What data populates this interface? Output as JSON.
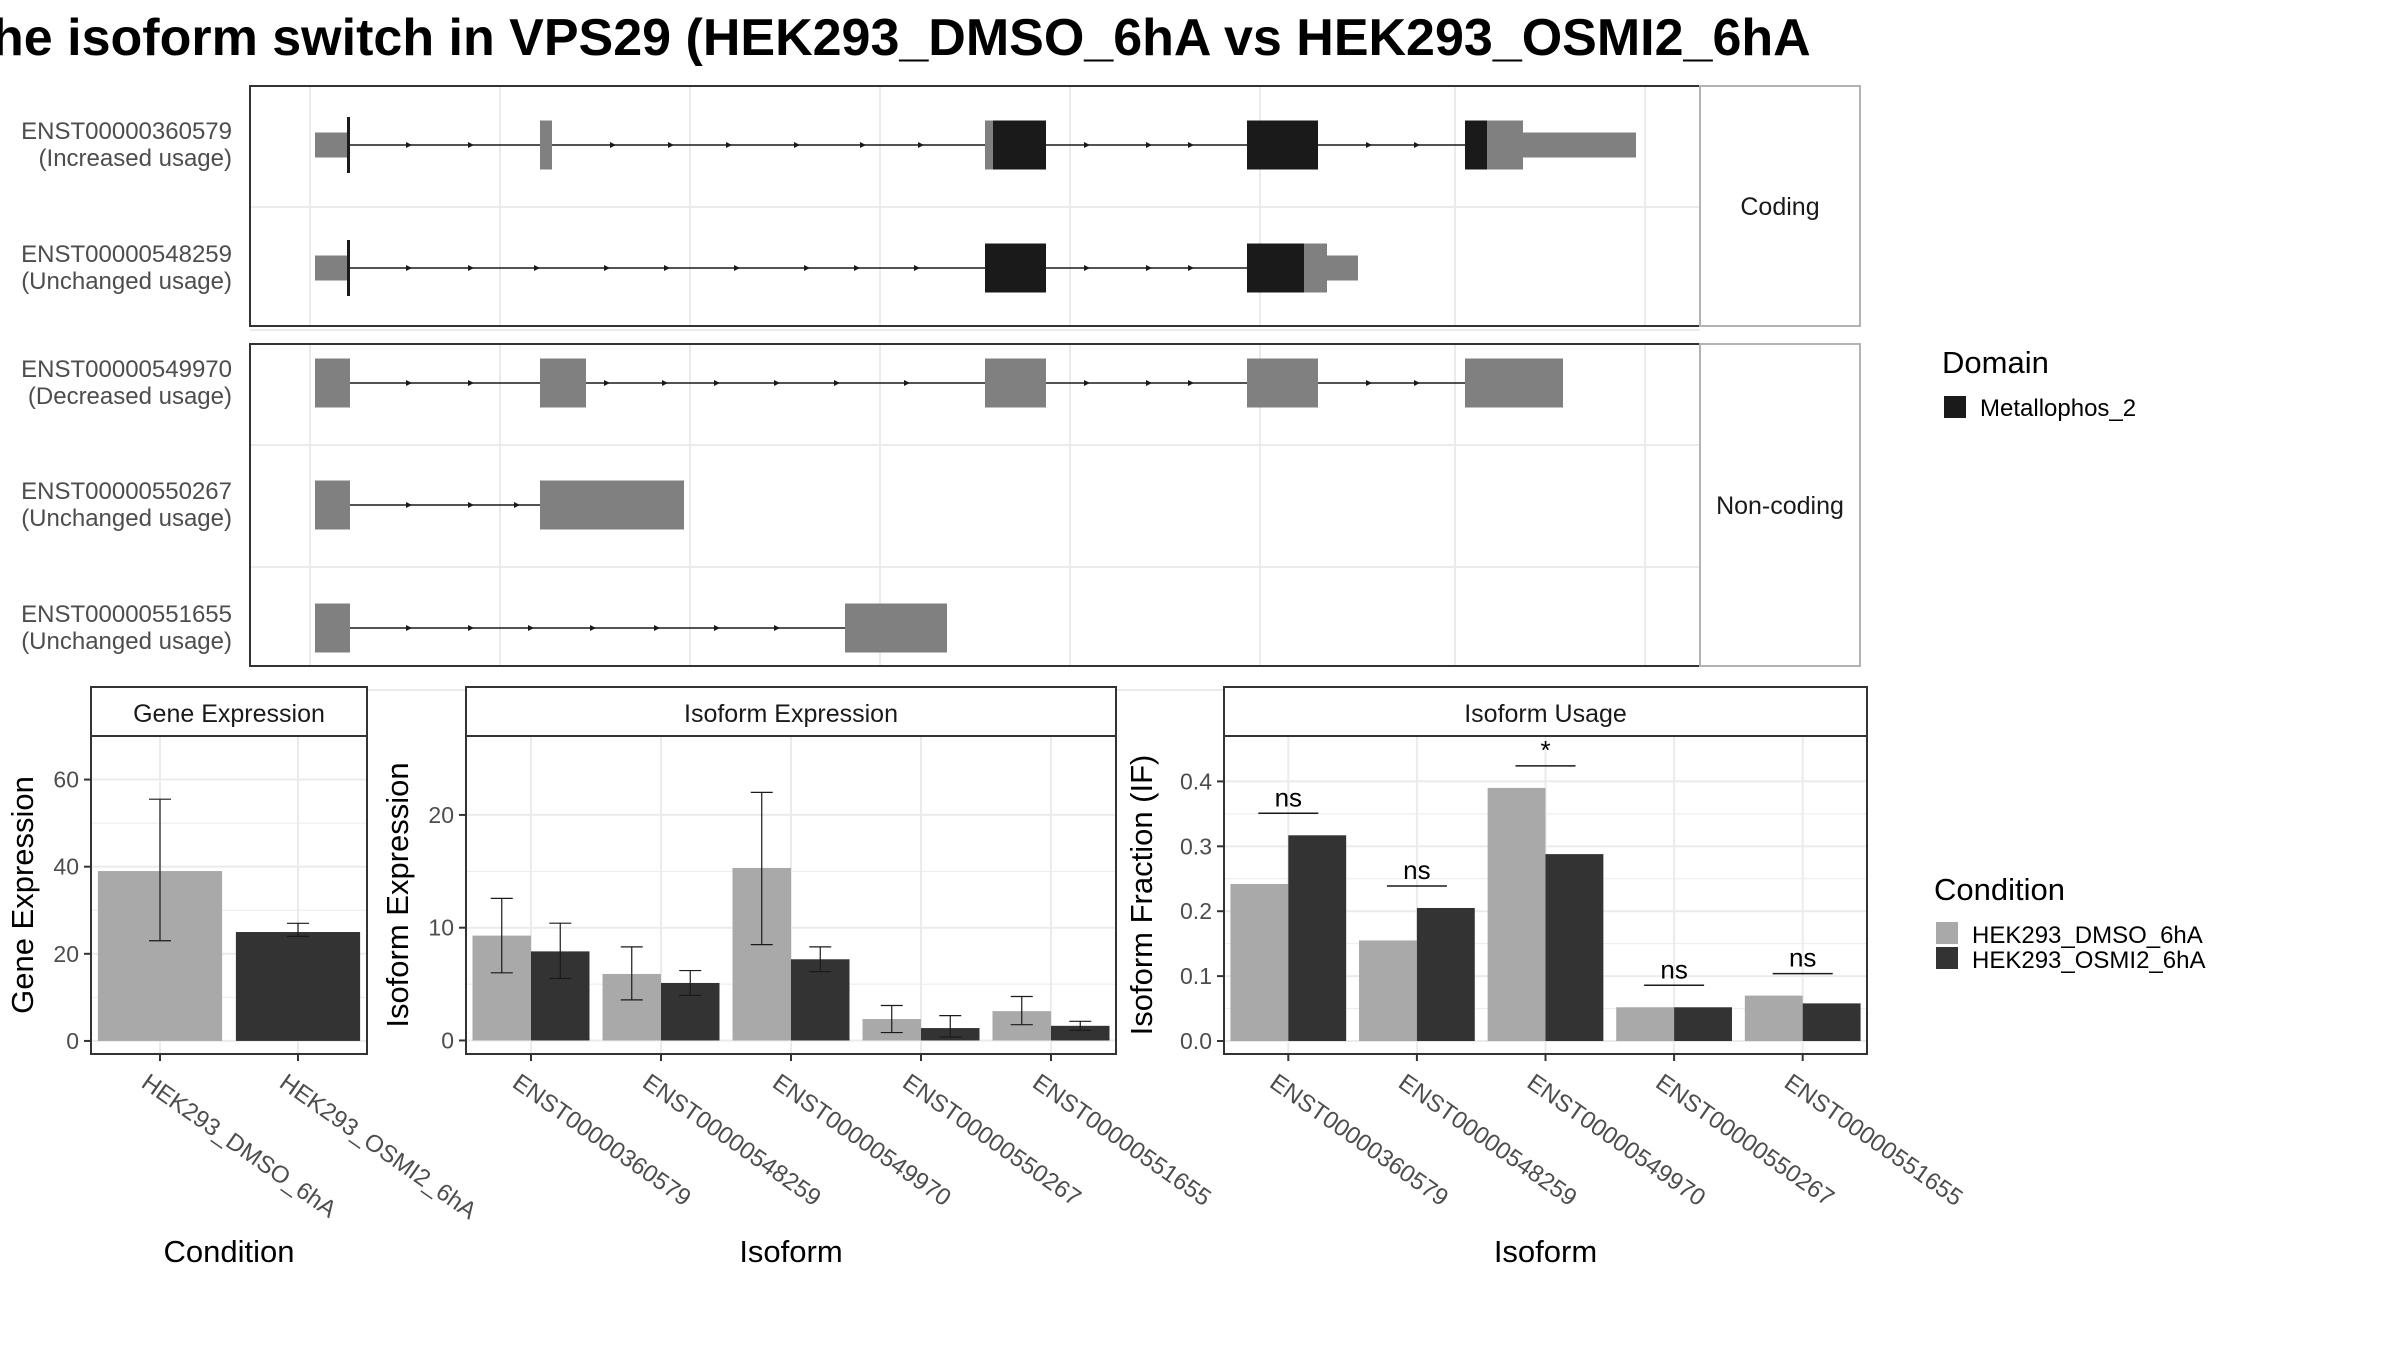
{
  "title": "he isoform switch in VPS29 (HEK293_DMSO_6hA vs HEK293_OSMI2_6hA",
  "colors": {
    "exon": "#808080",
    "domain": "#1a1a1a",
    "dmso": "#a9a9a9",
    "osmi": "#333333",
    "panel_border": "#333333",
    "strip_fill": "#ffffff",
    "grid": "#ebebeb",
    "text": "#4d4d4d"
  },
  "structure": {
    "facets": [
      {
        "label": "Coding",
        "isoforms": [
          0,
          1
        ]
      },
      {
        "label": "Non-coding",
        "isoforms": [
          2,
          3,
          4
        ]
      }
    ],
    "isoforms": [
      {
        "id": "ENST00000360579",
        "usage": "(Increased usage)"
      },
      {
        "id": "ENST00000548259",
        "usage": "(Unchanged usage)"
      },
      {
        "id": "ENST00000549970",
        "usage": "(Decreased usage)"
      },
      {
        "id": "ENST00000550267",
        "usage": "(Unchanged usage)"
      },
      {
        "id": "ENST00000551655",
        "usage": "(Unchanged usage)"
      }
    ],
    "domain_legend_title": "Domain",
    "domain_legend_items": [
      "Metallophos_2"
    ],
    "condition_legend_title": "Condition",
    "condition_legend_items": [
      "HEK293_DMSO_6hA",
      "HEK293_OSMI2_6hA"
    ]
  },
  "chart_data": [
    {
      "type": "bar",
      "title": "Gene Expression",
      "xlabel": "Condition",
      "ylabel": "Gene Expression",
      "categories": [
        "HEK293_DMSO_6hA",
        "HEK293_OSMI2_6hA"
      ],
      "values": [
        39,
        25
      ],
      "errors": [
        [
          23,
          55.5
        ],
        [
          24,
          27
        ]
      ],
      "ylim": [
        -3,
        70
      ],
      "yticks": [
        0,
        20,
        40,
        60
      ]
    },
    {
      "type": "bar",
      "title": "Isoform Expression",
      "xlabel": "Isoform",
      "ylabel": "Isoform Expression",
      "categories": [
        "ENST00000360579",
        "ENST00000548259",
        "ENST00000549970",
        "ENST00000550267",
        "ENST00000551655"
      ],
      "series": [
        {
          "name": "HEK293_DMSO_6hA",
          "values": [
            9.3,
            5.9,
            15.3,
            1.9,
            2.6
          ],
          "errors": [
            [
              6.0,
              12.6
            ],
            [
              3.6,
              8.3
            ],
            [
              8.5,
              22.0
            ],
            [
              0.7,
              3.1
            ],
            [
              1.4,
              3.9
            ]
          ]
        },
        {
          "name": "HEK293_OSMI2_6hA",
          "values": [
            7.9,
            5.1,
            7.2,
            1.1,
            1.3
          ],
          "errors": [
            [
              5.5,
              10.4
            ],
            [
              4.0,
              6.2
            ],
            [
              6.1,
              8.3
            ],
            [
              0.3,
              2.2
            ],
            [
              0.9,
              1.7
            ]
          ]
        }
      ],
      "ylim": [
        -1.2,
        27
      ],
      "yticks": [
        0,
        10,
        20
      ]
    },
    {
      "type": "bar",
      "title": "Isoform Usage",
      "xlabel": "Isoform",
      "ylabel": "Isoform Fraction (IF)",
      "categories": [
        "ENST00000360579",
        "ENST00000548259",
        "ENST00000549970",
        "ENST00000550267",
        "ENST00000551655"
      ],
      "series": [
        {
          "name": "HEK293_DMSO_6hA",
          "values": [
            0.242,
            0.155,
            0.39,
            0.052,
            0.07
          ]
        },
        {
          "name": "HEK293_OSMI2_6hA",
          "values": [
            0.317,
            0.205,
            0.288,
            0.052,
            0.058
          ]
        }
      ],
      "significance": [
        "ns",
        "ns",
        "*",
        "ns",
        "ns"
      ],
      "ylim": [
        -0.02,
        0.47
      ],
      "yticks": [
        0.0,
        0.1,
        0.2,
        0.3,
        0.4
      ],
      "ytick_labels": [
        "0.0",
        "0.1",
        "0.2",
        "0.3",
        "0.4"
      ]
    }
  ]
}
